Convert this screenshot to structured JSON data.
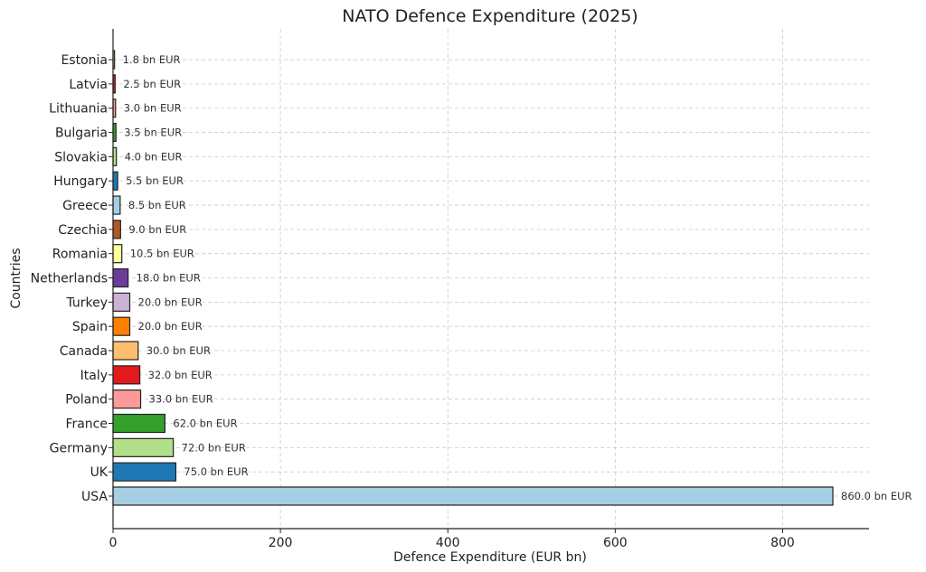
{
  "chart_data": {
    "type": "bar",
    "orientation": "horizontal",
    "title": "NATO Defence Expenditure (2025)",
    "xlabel": "Defence Expenditure (EUR bn)",
    "ylabel": "Countries",
    "xlim": [
      0,
      900
    ],
    "x_ticks": [
      0,
      200,
      400,
      600,
      800
    ],
    "grid": true,
    "value_suffix": " bn EUR",
    "categories": [
      "USA",
      "UK",
      "Germany",
      "France",
      "Poland",
      "Italy",
      "Canada",
      "Spain",
      "Turkey",
      "Netherlands",
      "Romania",
      "Czechia",
      "Greece",
      "Hungary",
      "Slovakia",
      "Bulgaria",
      "Lithuania",
      "Latvia",
      "Estonia"
    ],
    "values": [
      860.0,
      75.0,
      72.0,
      62.0,
      33.0,
      32.0,
      30.0,
      20.0,
      20.0,
      18.0,
      10.5,
      9.0,
      8.5,
      5.5,
      4.0,
      3.5,
      3.0,
      2.5,
      1.8
    ],
    "colors": [
      "#a6cee3",
      "#1f78b4",
      "#b2df8a",
      "#33a02c",
      "#fb9a99",
      "#e31a1c",
      "#fdbf6f",
      "#ff7f00",
      "#cab2d6",
      "#6a3d9a",
      "#ffff99",
      "#b15928",
      "#a6cee3",
      "#1f78b4",
      "#b2df8a",
      "#33a02c",
      "#fb9a99",
      "#e31a1c",
      "#fdbf6f"
    ]
  }
}
